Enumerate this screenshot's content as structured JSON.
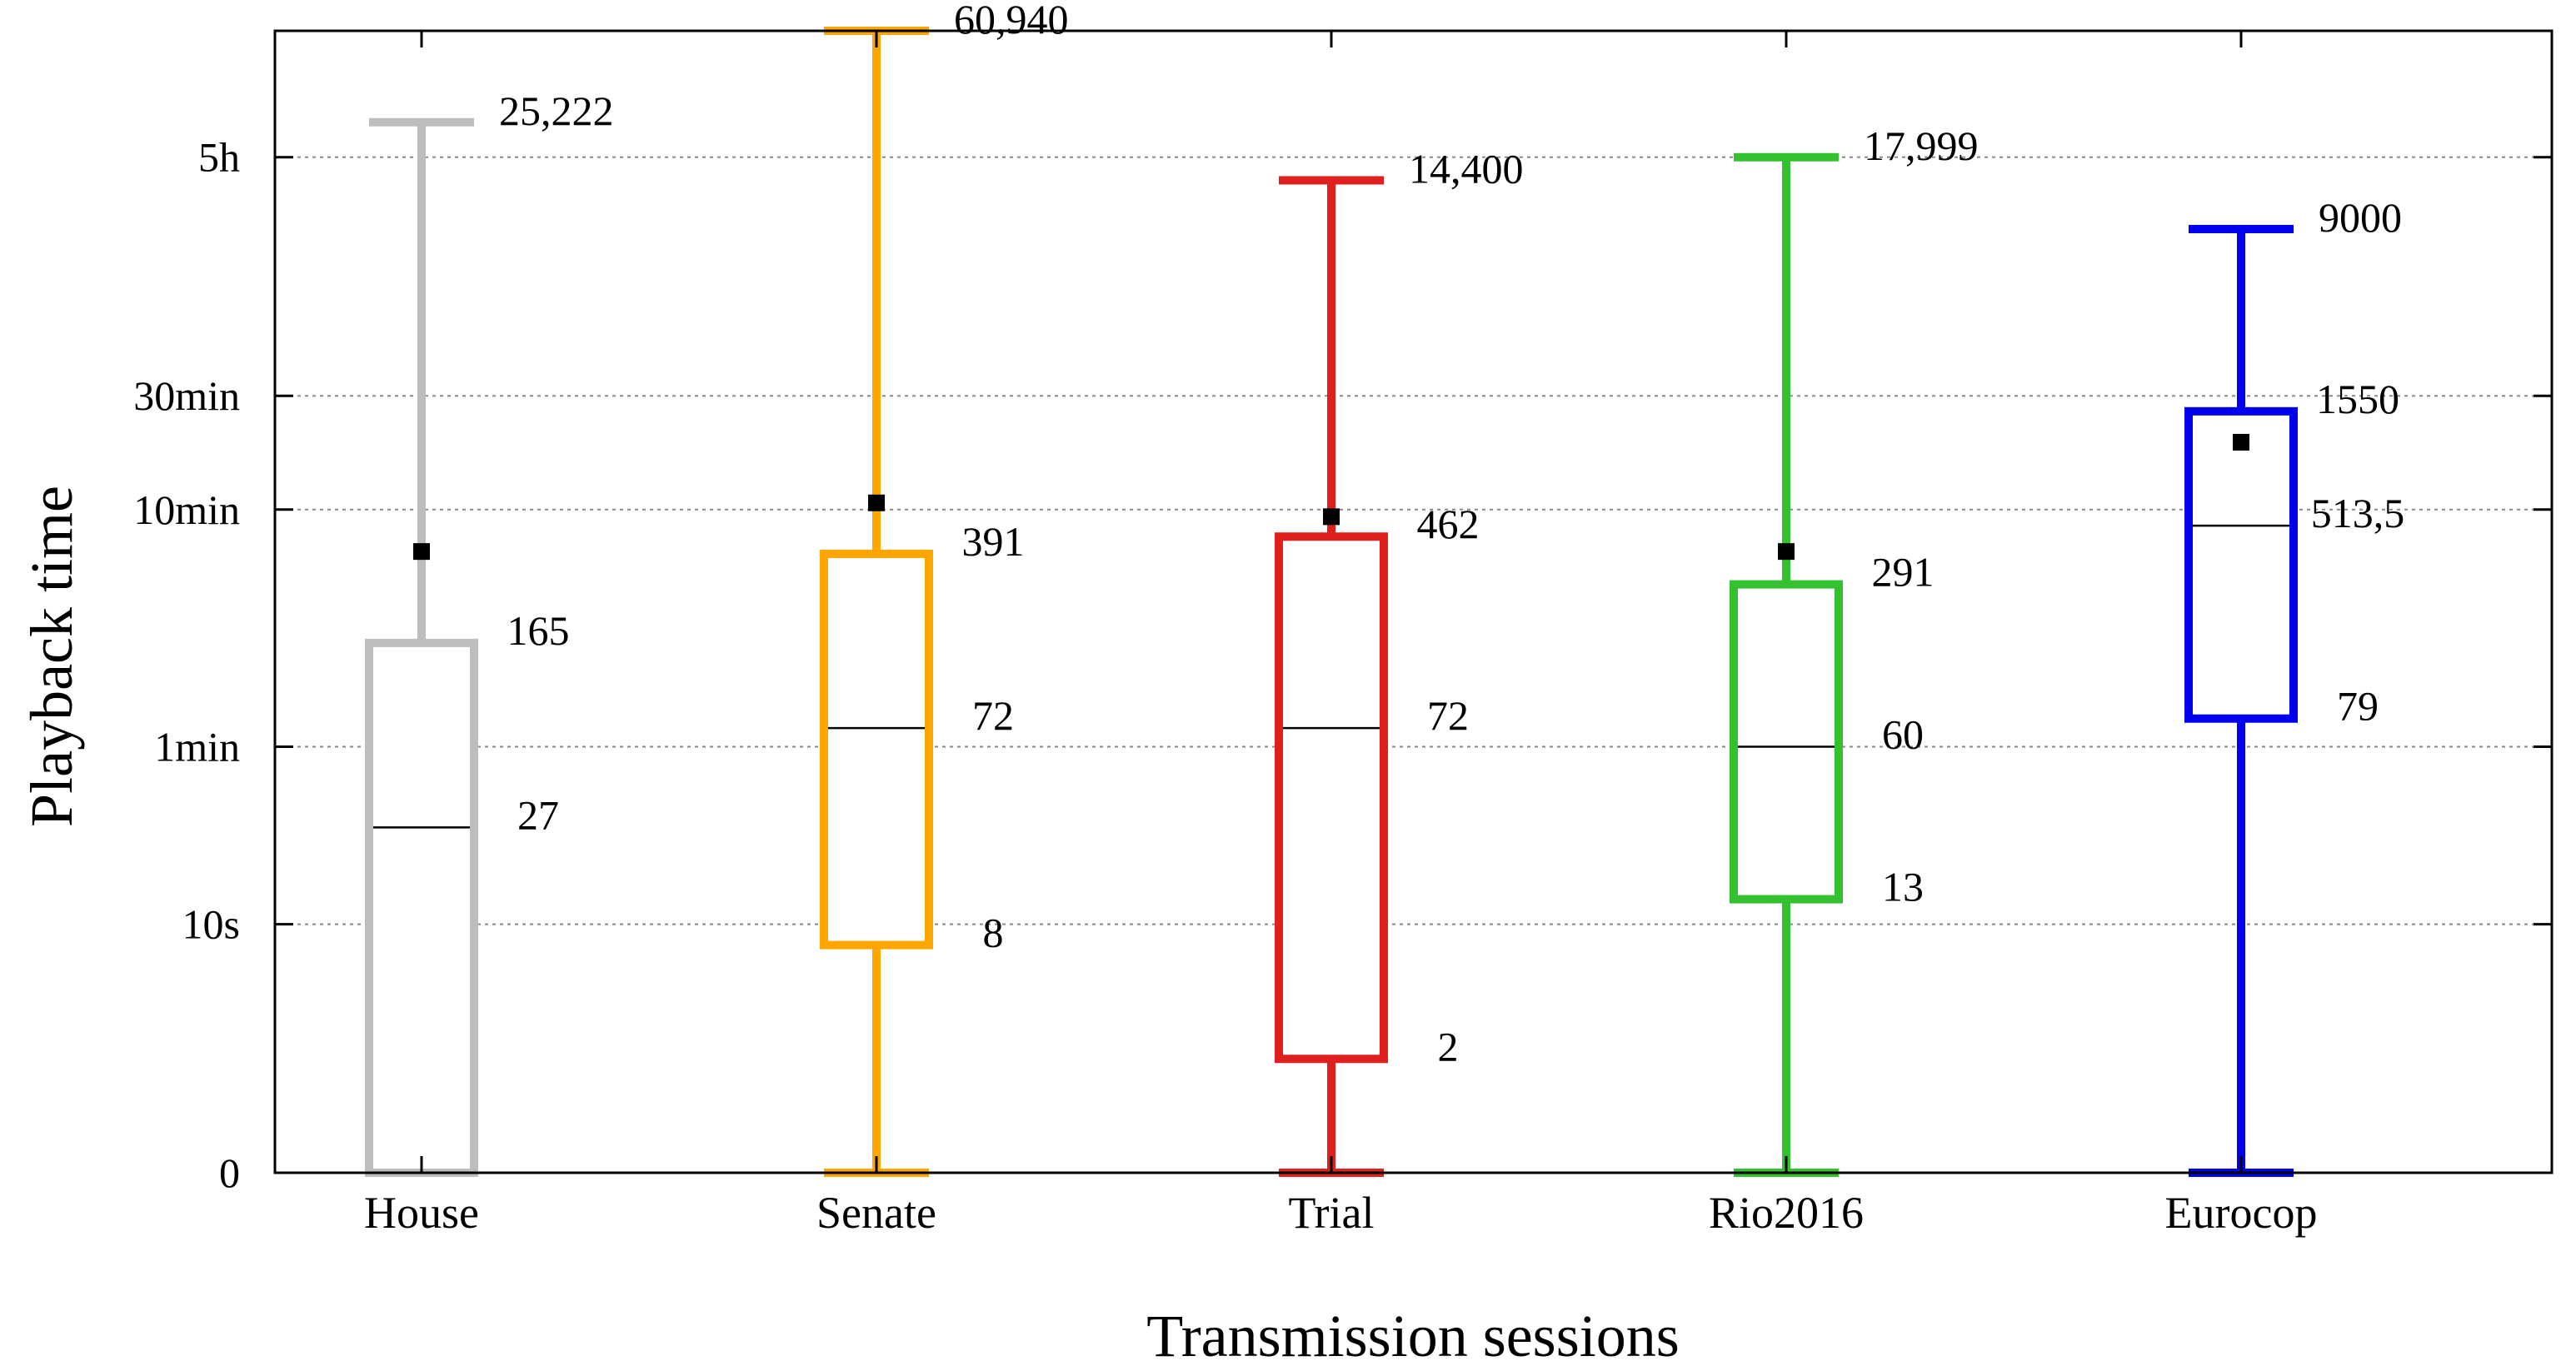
{
  "chart_data": {
    "type": "boxplot",
    "title": "",
    "xlabel": "Transmission sessions",
    "ylabel": "Playback time",
    "y_scale": "log1p",
    "ylim": [
      0,
      60940
    ],
    "grid": {
      "y": true,
      "style": "dotted"
    },
    "y_ticks": [
      {
        "value": 0,
        "label": "0"
      },
      {
        "value": 10,
        "label": "10s"
      },
      {
        "value": 60,
        "label": "1min"
      },
      {
        "value": 600,
        "label": "10min"
      },
      {
        "value": 1800,
        "label": "30min"
      },
      {
        "value": 18000,
        "label": "5h"
      }
    ],
    "categories": [
      "House",
      "Senate",
      "Trial",
      "Rio2016",
      "Eurocop"
    ],
    "series": [
      {
        "name": "House",
        "color": "#bdbdbd",
        "min": 0,
        "q1": 0,
        "median": 27,
        "q3": 165,
        "max": 25222,
        "mean": 400,
        "labels": {
          "max": "25,222",
          "q3": "165",
          "median": "27"
        }
      },
      {
        "name": "Senate",
        "color": "#ffa500",
        "min": 0,
        "q1": 8,
        "median": 72,
        "q3": 391,
        "max": 60940,
        "mean": 640,
        "labels": {
          "max": "60,940",
          "q3": "391",
          "median": "72",
          "q1": "8"
        }
      },
      {
        "name": "Trial",
        "color": "#e0201e",
        "min": 0,
        "q1": 2,
        "median": 72,
        "q3": 462,
        "max": 14400,
        "mean": 560,
        "labels": {
          "max": "14,400",
          "q3": "462",
          "median": "72",
          "q1": "2"
        }
      },
      {
        "name": "Rio2016",
        "color": "#33c12f",
        "min": 0,
        "q1": 13,
        "median": 60,
        "q3": 291,
        "max": 17999,
        "mean": 400,
        "labels": {
          "max": "17,999",
          "q3": "291",
          "median": "60",
          "q1": "13"
        }
      },
      {
        "name": "Eurocop",
        "color": "#0000ee",
        "min": 0,
        "q1": 79,
        "median": 513.5,
        "q3": 1550,
        "max": 9000,
        "mean": 1150,
        "labels": {
          "max": "9000",
          "q3": "1550",
          "median": "513,5",
          "q1": "79"
        }
      }
    ]
  }
}
